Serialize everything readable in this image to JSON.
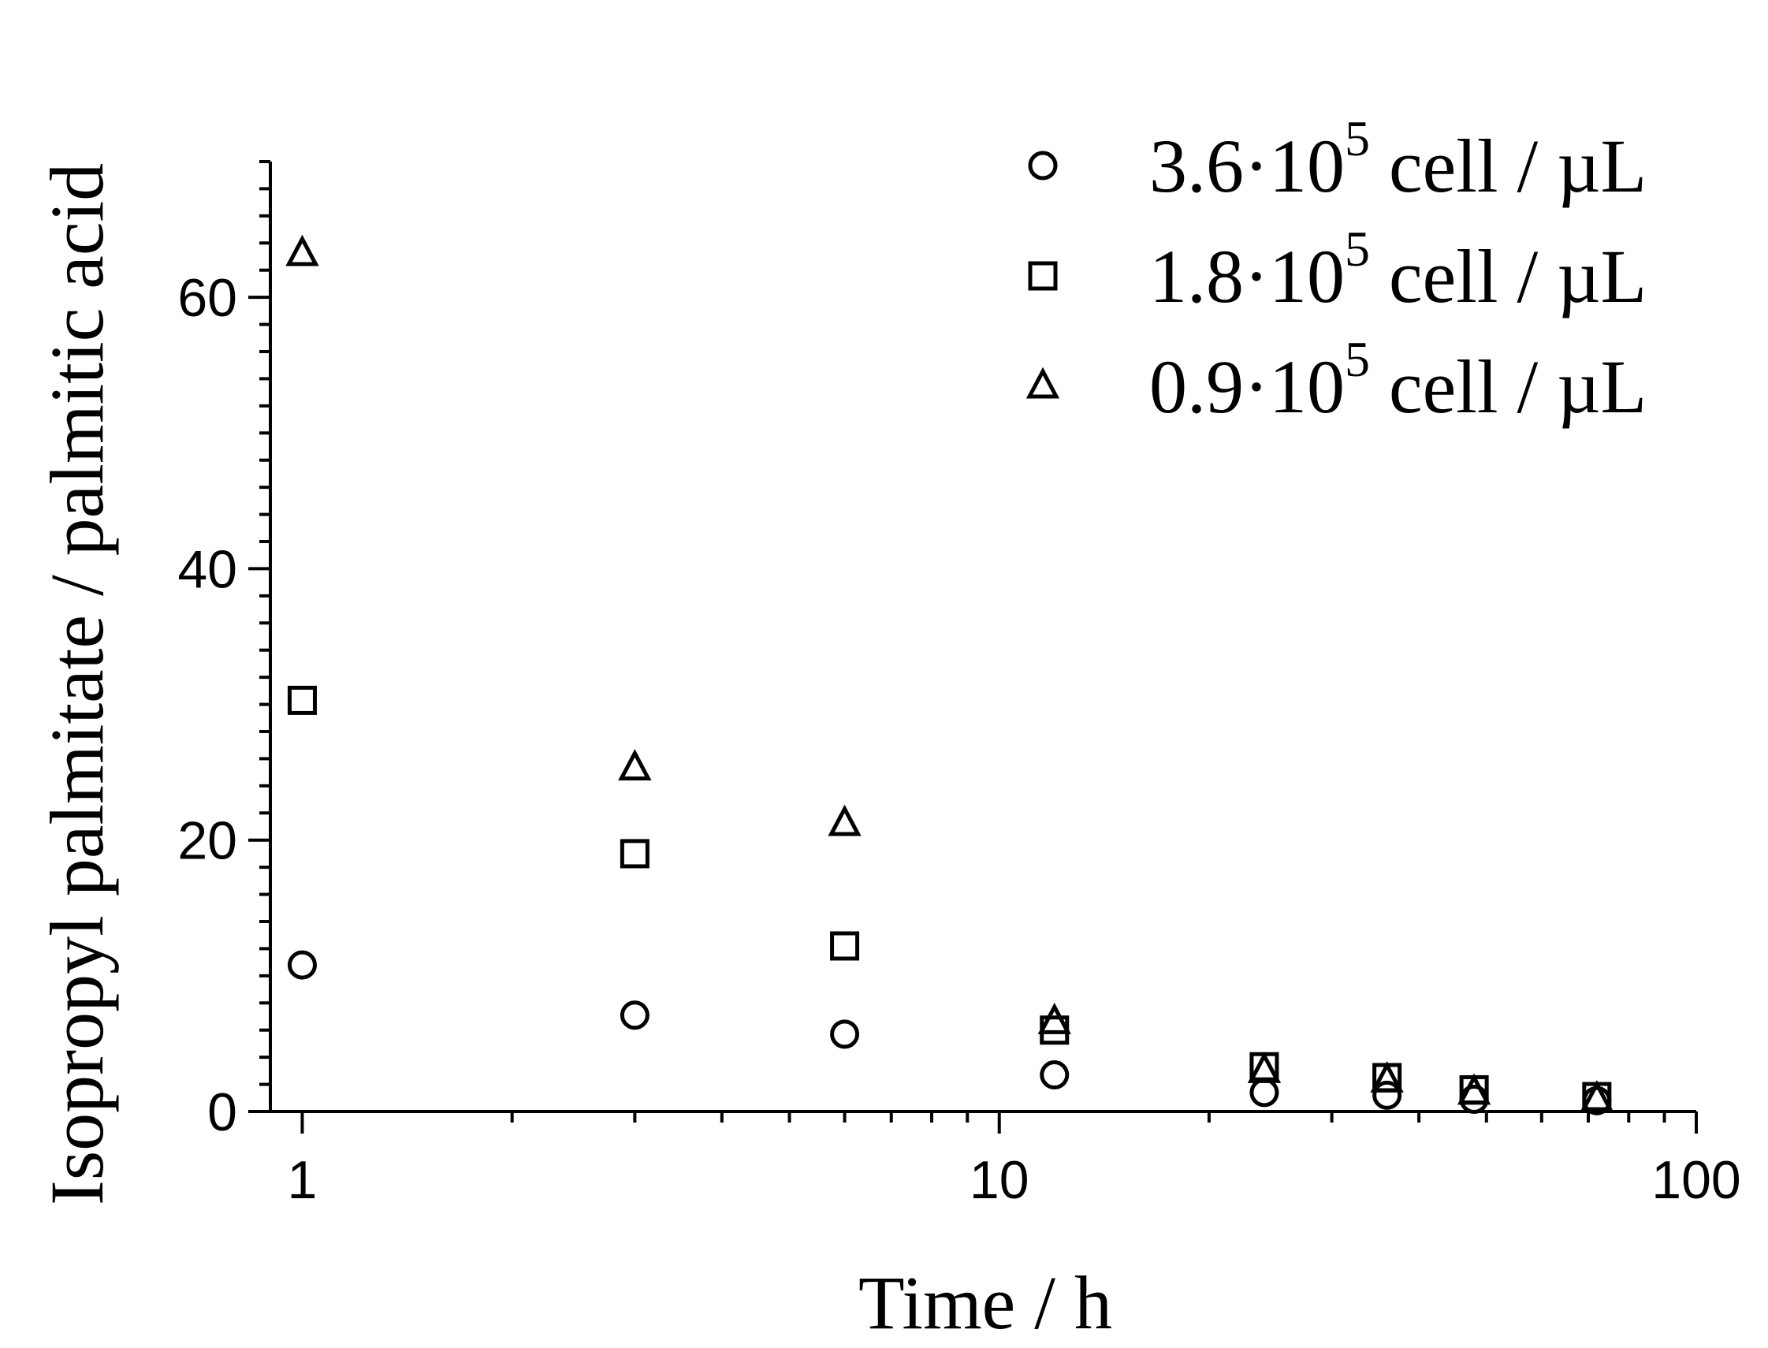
{
  "chart_data": {
    "type": "scatter",
    "xlabel": "Time / h",
    "ylabel": "Isopropyl palmitate / palmitic acid",
    "xscale": "log",
    "xlim": [
      0.9,
      100
    ],
    "ylim": [
      0,
      70
    ],
    "x_ticks": [
      {
        "value": 1,
        "label": "1"
      },
      {
        "value": 10,
        "label": "10"
      },
      {
        "value": 100,
        "label": "100"
      }
    ],
    "y_ticks": [
      {
        "value": 0,
        "label": "0"
      },
      {
        "value": 20,
        "label": "20"
      },
      {
        "value": 40,
        "label": "40"
      },
      {
        "value": 60,
        "label": "60"
      }
    ],
    "y_minor_step": 2,
    "legend_position": "top-right",
    "series": [
      {
        "name_main": "3.6·10",
        "name_sup": "5",
        "name_tail": " cell / µL",
        "marker": "circle",
        "points": [
          [
            1,
            10.8
          ],
          [
            3,
            7.1
          ],
          [
            6,
            5.7
          ],
          [
            12,
            2.7
          ],
          [
            24,
            1.4
          ],
          [
            36,
            1.2
          ],
          [
            48,
            0.9
          ],
          [
            72,
            0.8
          ]
        ]
      },
      {
        "name_main": "1.8·10",
        "name_sup": "5",
        "name_tail": " cell / µL",
        "marker": "square",
        "points": [
          [
            1,
            30.3
          ],
          [
            3,
            19.0
          ],
          [
            6,
            12.2
          ],
          [
            12,
            6.0
          ],
          [
            24,
            3.3
          ],
          [
            36,
            2.5
          ],
          [
            48,
            1.6
          ],
          [
            72,
            1.1
          ]
        ]
      },
      {
        "name_main": "0.9·10",
        "name_sup": "5",
        "name_tail": " cell / µL",
        "marker": "triangle",
        "points": [
          [
            1,
            63.2
          ],
          [
            3,
            25.3
          ],
          [
            6,
            21.2
          ],
          [
            12,
            6.6
          ],
          [
            24,
            3.0
          ],
          [
            36,
            2.3
          ],
          [
            48,
            1.4
          ],
          [
            72,
            0.9
          ]
        ]
      }
    ]
  }
}
